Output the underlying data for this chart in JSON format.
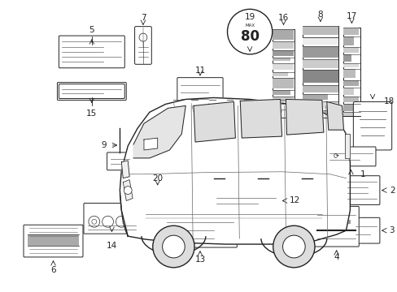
{
  "bg_color": "#ffffff",
  "fig_width": 4.89,
  "fig_height": 3.6,
  "dpi": 100,
  "line_color": "#222222",
  "gray": "#666666",
  "lgray": "#aaaaaa",
  "dgray": "#888888"
}
